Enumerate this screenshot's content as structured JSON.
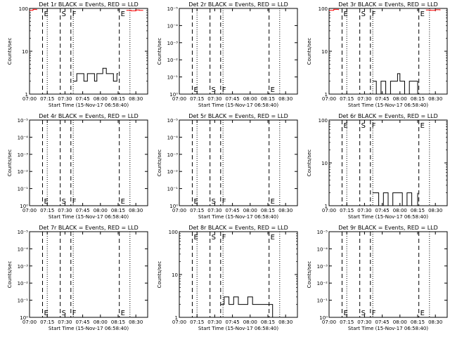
{
  "colors": {
    "events": "#000000",
    "lld": "#ff0000",
    "axis": "#000000",
    "background": "#ffffff"
  },
  "x_tick_labels": [
    "07:00",
    "07:15",
    "07:30",
    "07:45",
    "08:00",
    "08:15",
    "08:30"
  ],
  "xlabel": "Start Time (15-Nov-17 06:58:40)",
  "ylabel": "Counts/sec",
  "markers": {
    "labels": [
      "E",
      "S",
      "F",
      "E"
    ],
    "dashed_times": [
      "07:11",
      "07:26",
      "07:35",
      "08:16"
    ],
    "dotted_times": [
      "07:15",
      "07:37",
      "08:25"
    ]
  },
  "chart_data": [
    {
      "type": "line",
      "title": "Det 1r BLACK = Events, RED = LLD",
      "yscale": "log",
      "y_ticks": [
        "1",
        "10",
        "100"
      ],
      "ylim": [
        1,
        100
      ],
      "marker_label_pos": "top",
      "series": [
        {
          "color": "#000000",
          "x": [
            "07:37",
            "07:40",
            "07:43",
            "07:46",
            "07:49",
            "07:52",
            "07:55",
            "07:57",
            "07:59",
            "08:02",
            "08:05",
            "08:08",
            "08:11",
            "08:14",
            "08:15"
          ],
          "y": [
            2,
            3,
            3,
            2,
            3,
            3,
            2,
            3,
            3,
            4,
            3,
            3,
            2,
            3,
            3
          ]
        },
        {
          "color": "#ff0000",
          "x": [
            "07:00",
            "07:03",
            "07:06"
          ],
          "y": [
            90,
            95,
            92
          ]
        },
        {
          "color": "#ff0000",
          "x": [
            "08:22",
            "08:26",
            "08:30",
            "08:33",
            "08:36"
          ],
          "y": [
            90,
            88,
            92,
            90,
            91
          ]
        }
      ]
    },
    {
      "type": "line",
      "title": "Det 2r BLACK = Events, RED = LLD",
      "yscale": "log",
      "y_ticks": [
        "10⁰",
        "10⁻¹",
        "10⁻²",
        "10⁻³",
        "10⁻⁴",
        "10⁻⁵"
      ],
      "ylim": [
        1,
        1e-05
      ],
      "marker_label_pos": "bottom",
      "series": []
    },
    {
      "type": "line",
      "title": "Det 3r BLACK = Events, RED = LLD",
      "yscale": "log",
      "y_ticks": [
        "1",
        "10",
        "100"
      ],
      "ylim": [
        1,
        100
      ],
      "marker_label_pos": "top",
      "series": [
        {
          "color": "#000000",
          "x": [
            "07:37",
            "07:40",
            "07:44",
            "07:48",
            "07:52",
            "07:56",
            "07:58",
            "08:00",
            "08:04",
            "08:08",
            "08:12",
            "08:15"
          ],
          "y": [
            2,
            1,
            2,
            1,
            2,
            2,
            3,
            2,
            1,
            2,
            2,
            1
          ]
        },
        {
          "color": "#ff0000",
          "x": [
            "07:00",
            "07:04",
            "07:08"
          ],
          "y": [
            90,
            95,
            92
          ]
        },
        {
          "color": "#ff0000",
          "x": [
            "08:22",
            "08:26",
            "08:30",
            "08:34"
          ],
          "y": [
            92,
            90,
            93,
            90
          ]
        }
      ]
    },
    {
      "type": "line",
      "title": "Det 4r BLACK = Events, RED = LLD",
      "yscale": "log",
      "y_ticks": [
        "10⁰",
        "10⁻¹",
        "10⁻²",
        "10⁻³",
        "10⁻⁴",
        "10⁻⁵"
      ],
      "ylim": [
        1,
        1e-05
      ],
      "marker_label_pos": "bottom",
      "series": []
    },
    {
      "type": "line",
      "title": "Det 5r BLACK = Events, RED = LLD",
      "yscale": "log",
      "y_ticks": [
        "10⁰",
        "10⁻¹",
        "10⁻²",
        "10⁻³",
        "10⁻⁴",
        "10⁻⁵"
      ],
      "ylim": [
        1,
        1e-05
      ],
      "marker_label_pos": "bottom",
      "series": []
    },
    {
      "type": "line",
      "title": "Det 6r BLACK = Events, RED = LLD",
      "yscale": "log",
      "y_ticks": [
        "1",
        "10",
        "100"
      ],
      "ylim": [
        1,
        100
      ],
      "marker_label_pos": "top",
      "series": [
        {
          "color": "#000000",
          "x": [
            "07:37",
            "07:42",
            "07:46",
            "07:50",
            "07:54",
            "07:58",
            "08:02",
            "08:06",
            "08:10",
            "08:15"
          ],
          "y": [
            2,
            1,
            2,
            1,
            2,
            2,
            1,
            2,
            1,
            2
          ]
        }
      ]
    },
    {
      "type": "line",
      "title": "Det 7r BLACK = Events, RED = LLD",
      "yscale": "log",
      "y_ticks": [
        "10⁰",
        "10⁻¹",
        "10⁻²",
        "10⁻³",
        "10⁻⁴",
        "10⁻⁵"
      ],
      "ylim": [
        1,
        1e-05
      ],
      "marker_label_pos": "bottom",
      "series": []
    },
    {
      "type": "line",
      "title": "Det 8r BLACK = Events, RED = LLD",
      "yscale": "log",
      "y_ticks": [
        "1",
        "10",
        "100"
      ],
      "ylim": [
        1,
        100
      ],
      "marker_label_pos": "top",
      "series": [
        {
          "color": "#000000",
          "x": [
            "07:35",
            "07:38",
            "07:42",
            "07:46",
            "07:50",
            "07:54",
            "07:58",
            "08:02",
            "08:06",
            "08:10",
            "08:14",
            "08:19"
          ],
          "y": [
            2,
            3,
            2,
            3,
            2,
            2,
            3,
            2,
            2,
            2,
            2,
            1
          ]
        }
      ]
    },
    {
      "type": "line",
      "title": "Det 9r BLACK = Events, RED = LLD",
      "yscale": "log",
      "y_ticks": [
        "10⁰",
        "10⁻¹",
        "10⁻²",
        "10⁻³",
        "10⁻⁴",
        "10⁻⁵"
      ],
      "ylim": [
        1,
        1e-05
      ],
      "marker_label_pos": "bottom",
      "series": []
    }
  ]
}
